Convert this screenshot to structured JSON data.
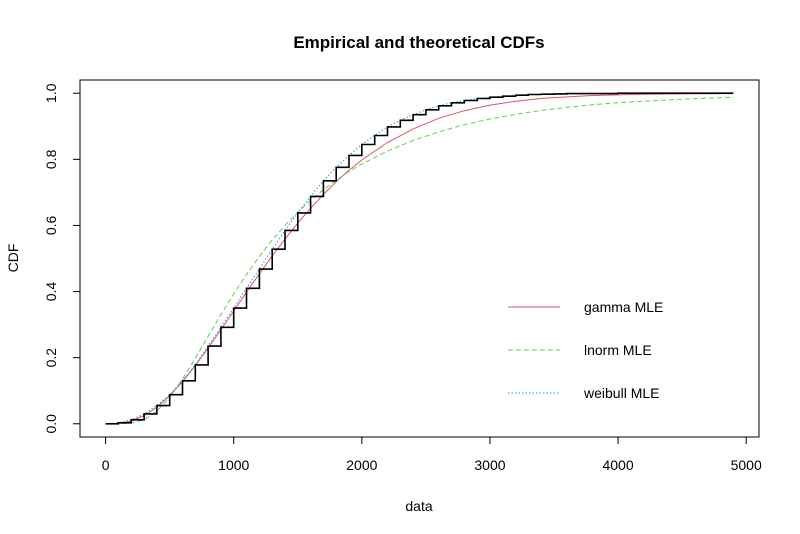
{
  "chart_data": {
    "type": "line",
    "title": "Empirical and theoretical CDFs",
    "xlabel": "data",
    "ylabel": "CDF",
    "xlim": [
      -200,
      5100
    ],
    "ylim": [
      -0.04,
      1.04
    ],
    "x_ticks": [
      0,
      1000,
      2000,
      3000,
      4000,
      5000
    ],
    "y_ticks": [
      0.0,
      0.2,
      0.4,
      0.6,
      0.8,
      1.0
    ],
    "x_tick_labels": [
      "0",
      "1000",
      "2000",
      "3000",
      "4000",
      "5000"
    ],
    "y_tick_labels": [
      "0.0",
      "0.2",
      "0.4",
      "0.6",
      "0.8",
      "1.0"
    ],
    "grid": false,
    "legend_position": "bottom-right",
    "empirical": {
      "color": "#000000",
      "x": [
        0,
        100,
        200,
        300,
        400,
        500,
        600,
        700,
        800,
        900,
        1000,
        1100,
        1200,
        1300,
        1400,
        1500,
        1600,
        1700,
        1800,
        1900,
        2000,
        2100,
        2200,
        2300,
        2400,
        2500,
        2600,
        2700,
        2800,
        2900,
        3000,
        3100,
        3200,
        3300,
        3400,
        3500,
        3600,
        3800,
        4000,
        4200,
        4500,
        4900
      ],
      "y": [
        0.0,
        0.003,
        0.012,
        0.03,
        0.055,
        0.088,
        0.13,
        0.178,
        0.235,
        0.292,
        0.35,
        0.41,
        0.468,
        0.528,
        0.585,
        0.638,
        0.688,
        0.735,
        0.776,
        0.812,
        0.845,
        0.872,
        0.898,
        0.918,
        0.935,
        0.95,
        0.962,
        0.971,
        0.978,
        0.984,
        0.988,
        0.991,
        0.994,
        0.996,
        0.997,
        0.998,
        0.999,
        0.999,
        1.0,
        1.0,
        1.0,
        1.0
      ]
    },
    "series": [
      {
        "name": "gamma MLE",
        "color": "#DF536B",
        "dash": "solid",
        "x": [
          0,
          100,
          200,
          300,
          400,
          500,
          600,
          700,
          800,
          900,
          1000,
          1100,
          1200,
          1300,
          1400,
          1500,
          1600,
          1700,
          1800,
          1900,
          2000,
          2200,
          2400,
          2600,
          2800,
          3000,
          3200,
          3400,
          3600,
          3800,
          4000,
          4200,
          4500,
          4900
        ],
        "y": [
          0.0,
          0.001,
          0.008,
          0.025,
          0.05,
          0.085,
          0.127,
          0.176,
          0.229,
          0.285,
          0.341,
          0.398,
          0.454,
          0.508,
          0.559,
          0.607,
          0.652,
          0.694,
          0.732,
          0.767,
          0.798,
          0.851,
          0.892,
          0.924,
          0.947,
          0.964,
          0.976,
          0.984,
          0.989,
          0.993,
          0.995,
          0.997,
          0.998,
          0.999
        ]
      },
      {
        "name": "lnorm MLE",
        "color": "#61D04F",
        "dash": "dashed",
        "x": [
          0,
          100,
          200,
          300,
          400,
          500,
          600,
          700,
          800,
          900,
          1000,
          1100,
          1200,
          1300,
          1400,
          1500,
          1600,
          1700,
          1800,
          1900,
          2000,
          2200,
          2400,
          2600,
          2800,
          3000,
          3200,
          3400,
          3600,
          3800,
          4000,
          4200,
          4500,
          4900
        ],
        "y": [
          0.0,
          0.0,
          0.002,
          0.012,
          0.038,
          0.08,
          0.135,
          0.198,
          0.265,
          0.33,
          0.393,
          0.452,
          0.506,
          0.556,
          0.6,
          0.64,
          0.676,
          0.708,
          0.737,
          0.763,
          0.786,
          0.825,
          0.857,
          0.883,
          0.905,
          0.922,
          0.936,
          0.948,
          0.957,
          0.965,
          0.971,
          0.976,
          0.982,
          0.988
        ]
      },
      {
        "name": "weibull MLE",
        "color": "#2297E6",
        "dash": "dotted",
        "x": [
          0,
          100,
          200,
          300,
          400,
          500,
          600,
          700,
          800,
          900,
          1000,
          1100,
          1200,
          1300,
          1400,
          1500,
          1600,
          1700,
          1800,
          1900,
          2000,
          2100,
          2200,
          2300,
          2400,
          2500,
          2600,
          2700,
          2800,
          2900,
          3000,
          3100,
          3200,
          3300,
          3400,
          3600,
          3800,
          4000,
          4500,
          4900
        ],
        "y": [
          0.0,
          0.003,
          0.012,
          0.03,
          0.055,
          0.088,
          0.13,
          0.178,
          0.235,
          0.292,
          0.35,
          0.41,
          0.468,
          0.528,
          0.585,
          0.638,
          0.688,
          0.735,
          0.776,
          0.812,
          0.845,
          0.872,
          0.898,
          0.918,
          0.935,
          0.95,
          0.962,
          0.971,
          0.978,
          0.984,
          0.988,
          0.991,
          0.994,
          0.996,
          0.997,
          0.999,
          0.999,
          1.0,
          1.0,
          1.0
        ]
      }
    ]
  }
}
